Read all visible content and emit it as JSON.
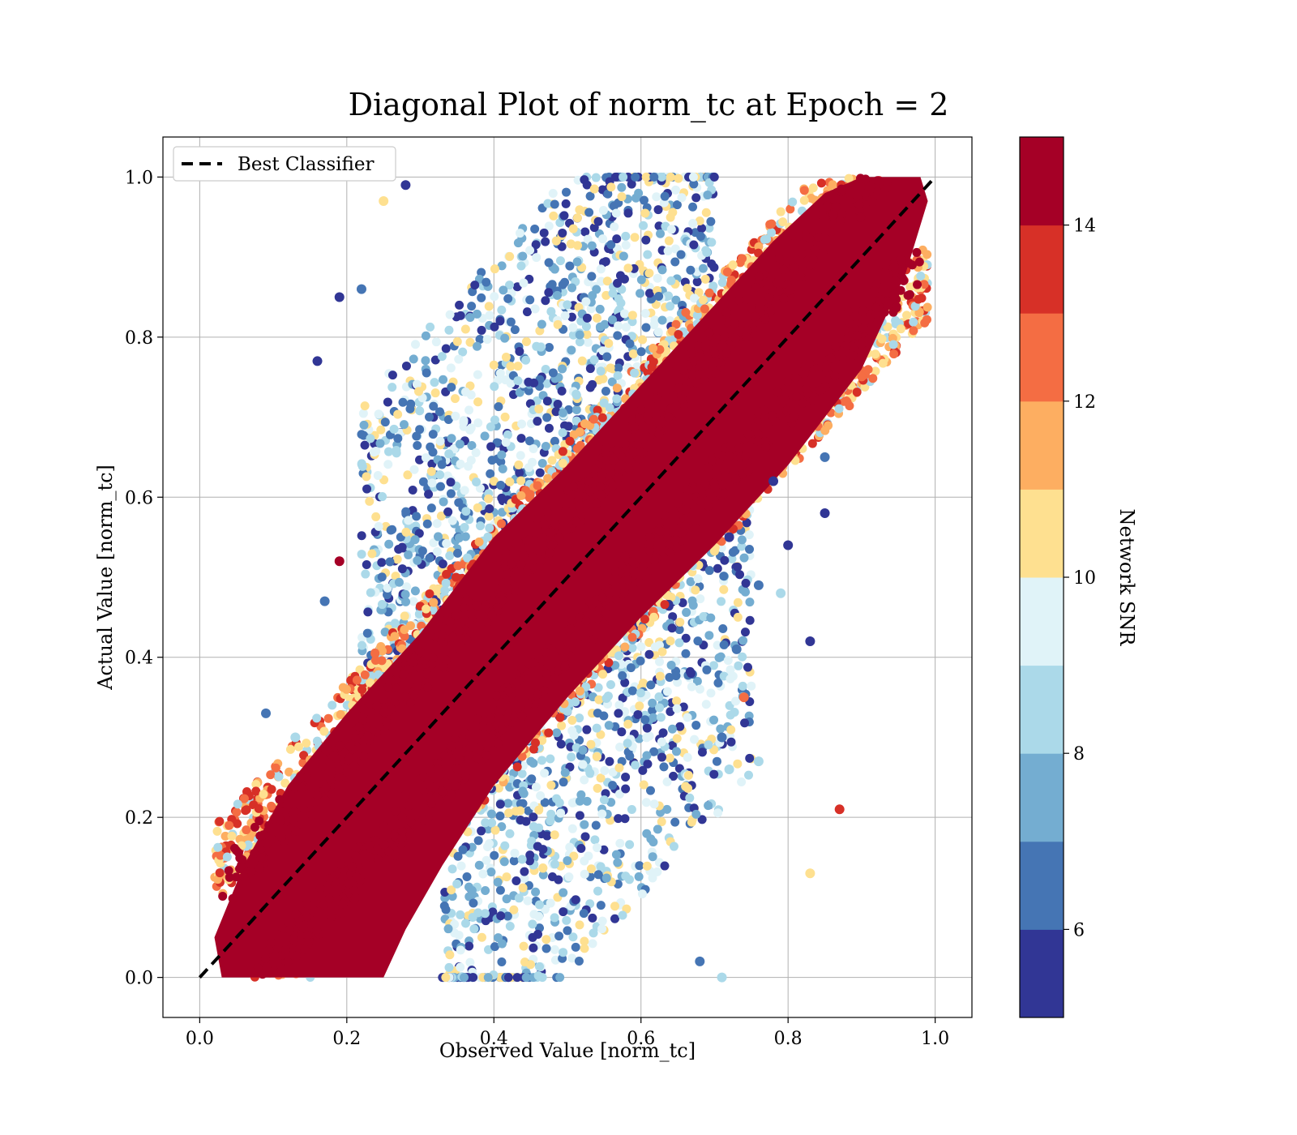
{
  "chart_data": {
    "type": "scatter",
    "title": "Diagonal Plot of norm_tc at Epoch = 2",
    "xlabel": "Observed Value [norm_tc]",
    "ylabel": "Actual Value [norm_tc]",
    "xlim": [
      -0.05,
      1.05
    ],
    "ylim": [
      -0.05,
      1.05
    ],
    "xticks": [
      "0.0",
      "0.2",
      "0.4",
      "0.6",
      "0.8",
      "1.0"
    ],
    "yticks": [
      "0.0",
      "0.2",
      "0.4",
      "0.6",
      "0.8",
      "1.0"
    ],
    "grid": true,
    "legend": {
      "position": "top-left",
      "entries": [
        "Best Classifier"
      ]
    },
    "reference_line": {
      "name": "Best Classifier",
      "style": "dashed",
      "color": "#000000",
      "x": [
        0,
        1
      ],
      "y": [
        0,
        1
      ]
    },
    "colorbar": {
      "label": "Network SNR",
      "range": [
        5,
        15
      ],
      "ticks": [
        "6",
        "8",
        "10",
        "12",
        "14"
      ],
      "tick_values": [
        6,
        8,
        10,
        12,
        14
      ],
      "colors": [
        "#313695",
        "#4575b4",
        "#74add1",
        "#abd9e9",
        "#e0f3f8",
        "#fee090",
        "#fdae61",
        "#f46d43",
        "#d73027",
        "#a50026"
      ]
    },
    "points": [
      {
        "x": 0.16,
        "y": 0.77,
        "snr": 5.5
      },
      {
        "x": 0.25,
        "y": 0.97,
        "snr": 10.5
      },
      {
        "x": 0.28,
        "y": 0.99,
        "snr": 5.8
      },
      {
        "x": 0.22,
        "y": 0.86,
        "snr": 6.5
      },
      {
        "x": 0.19,
        "y": 0.85,
        "snr": 5.5
      },
      {
        "x": 0.19,
        "y": 0.52,
        "snr": 14.5
      },
      {
        "x": 0.09,
        "y": 0.33,
        "snr": 6.5
      },
      {
        "x": 0.13,
        "y": 0.3,
        "snr": 8.5
      },
      {
        "x": 0.17,
        "y": 0.47,
        "snr": 6.5
      },
      {
        "x": 0.85,
        "y": 0.65,
        "snr": 6.5
      },
      {
        "x": 0.85,
        "y": 0.58,
        "snr": 5.5
      },
      {
        "x": 0.78,
        "y": 0.62,
        "snr": 5.5
      },
      {
        "x": 0.8,
        "y": 0.54,
        "snr": 5.5
      },
      {
        "x": 0.83,
        "y": 0.42,
        "snr": 5.5
      },
      {
        "x": 0.87,
        "y": 0.21,
        "snr": 13.5
      },
      {
        "x": 0.83,
        "y": 0.13,
        "snr": 10.5
      },
      {
        "x": 0.71,
        "y": 0.0,
        "snr": 8.5
      },
      {
        "x": 0.76,
        "y": 0.27,
        "snr": 8.5
      },
      {
        "x": 0.72,
        "y": 0.26,
        "snr": 8.5
      },
      {
        "x": 0.74,
        "y": 0.35,
        "snr": 12.5
      },
      {
        "x": 0.79,
        "y": 0.48,
        "snr": 8.5
      },
      {
        "x": 0.76,
        "y": 0.49,
        "snr": 6.5
      },
      {
        "x": 0.72,
        "y": 0.55,
        "snr": 5.5
      },
      {
        "x": 0.73,
        "y": 0.41,
        "snr": 6.5
      },
      {
        "x": 0.71,
        "y": 0.3,
        "snr": 6.5
      },
      {
        "x": 0.68,
        "y": 0.02,
        "snr": 6.5
      }
    ],
    "dense_band": {
      "description_source": "visual",
      "core_color": "#a50026",
      "upper_scatter_x_range": [
        0.22,
        0.85
      ],
      "lower_scatter_x_range": [
        0.3,
        0.75
      ]
    }
  }
}
